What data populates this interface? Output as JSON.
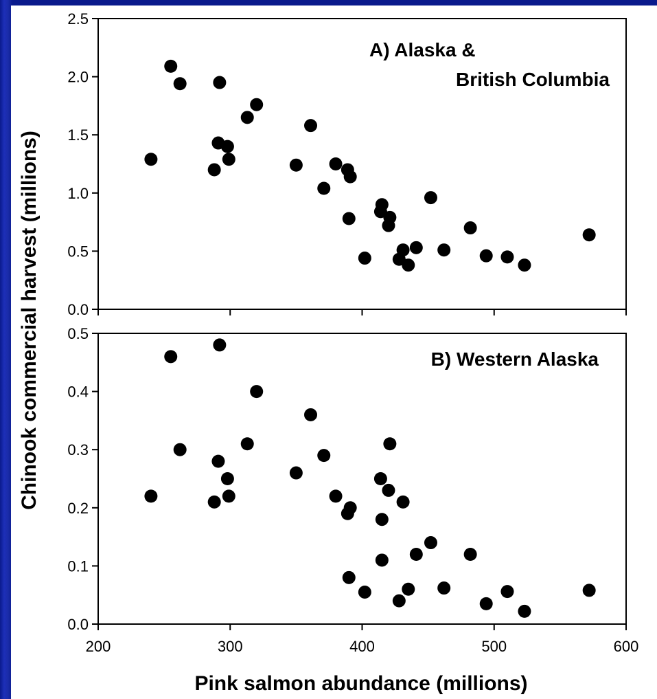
{
  "chart_data": [
    {
      "type": "scatter",
      "title": "A) Alaska &",
      "title_line2": "British Columbia",
      "xlim": [
        200,
        600
      ],
      "ylim": [
        0.0,
        2.5
      ],
      "yticks": [
        "0.0",
        "0.5",
        "1.0",
        "1.5",
        "2.0",
        "2.5"
      ],
      "grid": false,
      "points": [
        [
          240,
          1.29
        ],
        [
          255,
          2.09
        ],
        [
          262,
          1.94
        ],
        [
          288,
          1.2
        ],
        [
          291,
          1.43
        ],
        [
          292,
          1.95
        ],
        [
          298,
          1.4
        ],
        [
          299,
          1.29
        ],
        [
          313,
          1.65
        ],
        [
          320,
          1.76
        ],
        [
          350,
          1.24
        ],
        [
          361,
          1.58
        ],
        [
          371,
          1.04
        ],
        [
          380,
          1.25
        ],
        [
          389,
          1.2
        ],
        [
          390,
          0.78
        ],
        [
          391,
          1.14
        ],
        [
          402,
          0.44
        ],
        [
          414,
          0.84
        ],
        [
          415,
          0.9
        ],
        [
          420,
          0.72
        ],
        [
          421,
          0.79
        ],
        [
          428,
          0.43
        ],
        [
          431,
          0.51
        ],
        [
          435,
          0.38
        ],
        [
          441,
          0.53
        ],
        [
          452,
          0.96
        ],
        [
          462,
          0.51
        ],
        [
          482,
          0.7
        ],
        [
          494,
          0.46
        ],
        [
          510,
          0.45
        ],
        [
          523,
          0.38
        ],
        [
          572,
          0.64
        ]
      ]
    },
    {
      "type": "scatter",
      "title": "B) Western Alaska",
      "xlim": [
        200,
        600
      ],
      "ylim": [
        0.0,
        0.5
      ],
      "yticks": [
        "0.0",
        "0.1",
        "0.2",
        "0.3",
        "0.4",
        "0.5"
      ],
      "xticks": [
        "200",
        "300",
        "400",
        "500",
        "600"
      ],
      "xlabel": "Pink salmon abundance (millions)",
      "grid": false,
      "points": [
        [
          240,
          0.22
        ],
        [
          255,
          0.46
        ],
        [
          262,
          0.3
        ],
        [
          288,
          0.21
        ],
        [
          291,
          0.28
        ],
        [
          292,
          0.48
        ],
        [
          298,
          0.25
        ],
        [
          299,
          0.22
        ],
        [
          313,
          0.31
        ],
        [
          320,
          0.4
        ],
        [
          350,
          0.26
        ],
        [
          361,
          0.36
        ],
        [
          371,
          0.29
        ],
        [
          380,
          0.22
        ],
        [
          389,
          0.19
        ],
        [
          390,
          0.08
        ],
        [
          391,
          0.2
        ],
        [
          402,
          0.055
        ],
        [
          414,
          0.25
        ],
        [
          415,
          0.18
        ],
        [
          415,
          0.11
        ],
        [
          420,
          0.23
        ],
        [
          421,
          0.31
        ],
        [
          428,
          0.04
        ],
        [
          431,
          0.21
        ],
        [
          435,
          0.06
        ],
        [
          441,
          0.12
        ],
        [
          452,
          0.14
        ],
        [
          462,
          0.062
        ],
        [
          482,
          0.12
        ],
        [
          494,
          0.035
        ],
        [
          510,
          0.056
        ],
        [
          523,
          0.022
        ],
        [
          572,
          0.058
        ]
      ]
    }
  ],
  "ylabel": "Chinook commercial harvest (millions)",
  "colors": {
    "marker": "#000000",
    "background": "#0a1a8c",
    "panel": "#ffffff"
  }
}
